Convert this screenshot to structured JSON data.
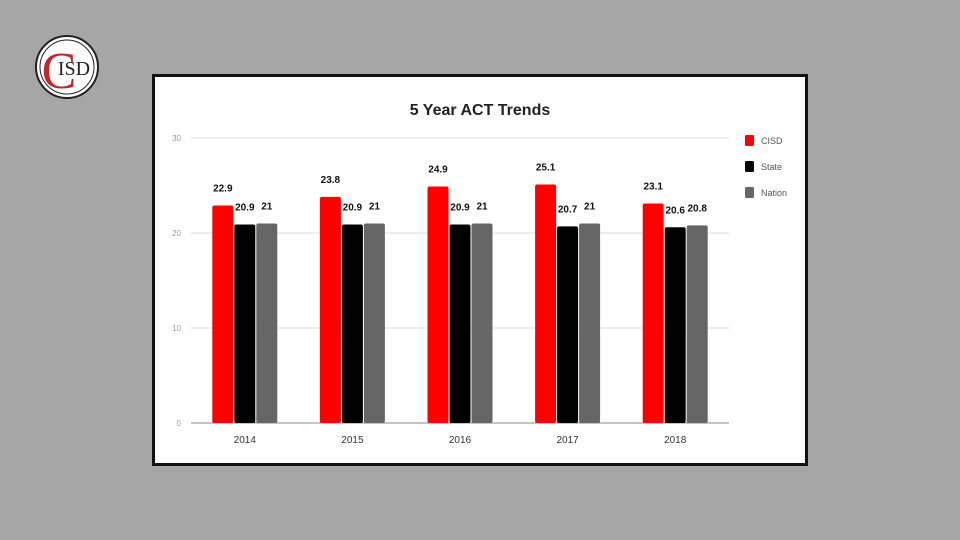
{
  "logo": {
    "text": "ISD",
    "big_letter": "C"
  },
  "chart_data": {
    "type": "bar",
    "title": "5 Year ACT Trends",
    "xlabel": "",
    "ylabel": "",
    "categories": [
      "2014",
      "2015",
      "2016",
      "2017",
      "2018"
    ],
    "series": [
      {
        "name": "CISD",
        "color": "#ff0000",
        "values": [
          22.9,
          23.8,
          24.9,
          25.1,
          23.1
        ]
      },
      {
        "name": "State",
        "color": "#000000",
        "values": [
          20.9,
          20.9,
          20.9,
          20.7,
          20.6
        ]
      },
      {
        "name": "Nation",
        "color": "#666666",
        "values": [
          21,
          21,
          21,
          21,
          20.8
        ]
      }
    ],
    "ylim": [
      0,
      30
    ],
    "yticks": [
      0,
      10,
      20,
      30
    ],
    "grid": true,
    "legend_position": "right"
  }
}
